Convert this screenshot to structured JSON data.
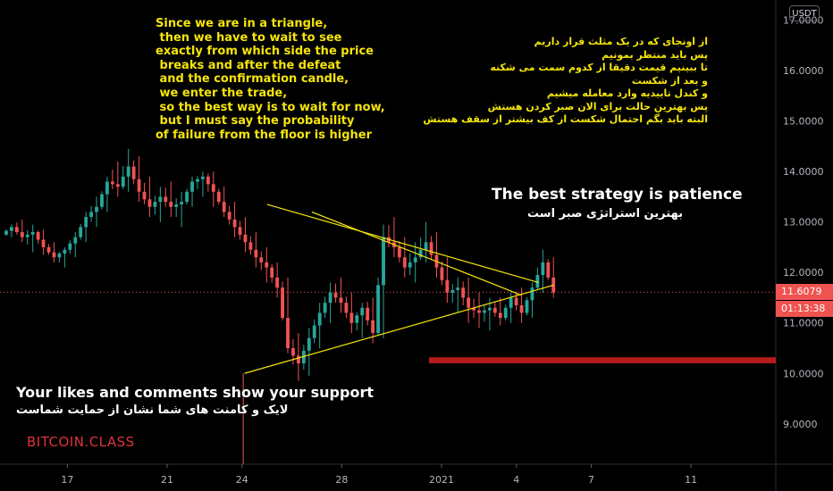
{
  "currency": "USDT",
  "brand": "BITCOIN.CLASS",
  "annotations": {
    "english_block": "Since we are in a triangle,\n then we have to wait to see\nexactly from which side the price\n breaks and after the defeat\n and the confirmation candle,\n we enter the trade,\n so the best way is to wait for now,\n but I must say the probability\nof failure from the floor is higher",
    "persian_block": "از اونجای که در یک مثلث قرار داریم\nپس باید منتظر بمونیم\nتا ببینیم قیمت دقیقا از کدوم سمت می شکنه\nو بعد از شکست\nو کندل تاییدیه وارد معامله میشیم\nپس بهترین حالت برای الان صبر کردن هستش\nالبته باید بگم احتمال شکست از کف بیشتر از سقف هستش",
    "strategy_en": "The best strategy is patience",
    "strategy_fa": "بهترین استراتژی صبر است",
    "support_en": "Your likes and comments show your support",
    "support_fa": "لایک و کامنت های شما نشان از حمایت شماست"
  },
  "price_labels": {
    "last_price": "11.6079",
    "countdown": "01:13:38"
  },
  "colors": {
    "background": "#000000",
    "up": "#26a69a",
    "down": "#ef5350",
    "pattern": "#f5e50a",
    "zone": "#b71c1c",
    "price_line": "#ef5350",
    "last_price_bg": "#ef5350",
    "countdown_bg": "#ef5350"
  },
  "chart_data": {
    "type": "candlestick",
    "symbol_quote": "USDT",
    "ylim": [
      8.2,
      17.4
    ],
    "y_ticks": [
      "9.0000",
      "10.0000",
      "11.0000",
      "12.0000",
      "13.0000",
      "14.0000",
      "15.0000",
      "16.0000",
      "17.0000"
    ],
    "y_tick_values": [
      9,
      10,
      11,
      12,
      13,
      14,
      15,
      16,
      17
    ],
    "x_ticks": [
      "17",
      "21",
      "24",
      "28",
      "2021",
      "4",
      "7",
      "11"
    ],
    "x_tick_days": [
      17,
      21,
      24,
      28,
      32,
      35,
      38,
      42
    ],
    "x_unit": "day of December 2020 (32 = Jan 1, 2021)",
    "xlim": [
      14.3,
      45.4
    ],
    "last_price": 11.6079,
    "resistance_zone": {
      "x_start": 31.5,
      "low": 10.2,
      "high": 10.32
    },
    "triangle": {
      "upper_line_1": [
        [
          25.0,
          13.35
        ],
        [
          35.9,
          11.8
        ]
      ],
      "upper_line_2": [
        [
          26.8,
          13.2
        ],
        [
          35.2,
          11.55
        ]
      ],
      "lower_line": [
        [
          24.1,
          10.0
        ],
        [
          36.5,
          11.75
        ]
      ]
    },
    "candles": [
      [
        12.75,
        12.95,
        12.7,
        12.9
      ],
      [
        12.9,
        13.05,
        12.6,
        12.7
      ],
      [
        12.7,
        12.95,
        12.4,
        12.8
      ],
      [
        12.8,
        12.85,
        12.35,
        12.5
      ],
      [
        12.5,
        12.6,
        12.2,
        12.3
      ],
      [
        12.3,
        12.5,
        12.1,
        12.45
      ],
      [
        12.45,
        12.8,
        12.3,
        12.7
      ],
      [
        12.7,
        13.2,
        12.6,
        13.1
      ],
      [
        13.1,
        13.5,
        12.9,
        13.3
      ],
      [
        13.3,
        13.9,
        13.2,
        13.8
      ],
      [
        13.8,
        14.2,
        13.5,
        13.7
      ],
      [
        13.7,
        14.45,
        13.6,
        14.1
      ],
      [
        14.1,
        14.3,
        13.4,
        13.6
      ],
      [
        13.6,
        13.9,
        13.1,
        13.3
      ],
      [
        13.3,
        13.7,
        13.0,
        13.5
      ],
      [
        13.5,
        13.8,
        13.1,
        13.3
      ],
      [
        13.3,
        13.6,
        12.9,
        13.4
      ],
      [
        13.4,
        13.9,
        13.3,
        13.8
      ],
      [
        13.8,
        14.0,
        13.5,
        13.9
      ],
      [
        13.9,
        14.0,
        13.3,
        13.6
      ],
      [
        13.6,
        13.7,
        13.1,
        13.2
      ],
      [
        13.2,
        13.4,
        12.7,
        12.9
      ],
      [
        12.9,
        13.1,
        12.4,
        12.6
      ],
      [
        12.6,
        12.8,
        12.1,
        12.3
      ],
      [
        12.3,
        12.5,
        11.8,
        12.1
      ],
      [
        12.1,
        12.2,
        11.5,
        11.7
      ],
      [
        11.7,
        11.9,
        10.4,
        10.5
      ],
      [
        10.5,
        10.8,
        9.85,
        10.2
      ],
      [
        10.2,
        10.9,
        9.95,
        10.7
      ],
      [
        10.7,
        11.4,
        10.5,
        11.2
      ],
      [
        11.2,
        11.8,
        11.0,
        11.6
      ],
      [
        11.6,
        11.9,
        11.2,
        11.4
      ],
      [
        11.4,
        11.6,
        10.8,
        11.0
      ],
      [
        11.0,
        11.4,
        10.7,
        11.3
      ],
      [
        11.3,
        11.5,
        10.6,
        10.8
      ],
      [
        10.8,
        12.95,
        10.7,
        12.7
      ],
      [
        12.7,
        13.1,
        12.3,
        12.5
      ],
      [
        12.5,
        12.7,
        11.9,
        12.1
      ],
      [
        12.1,
        12.6,
        11.8,
        12.3
      ],
      [
        12.3,
        13.0,
        12.2,
        12.6
      ],
      [
        12.6,
        12.8,
        11.9,
        12.1
      ],
      [
        12.1,
        12.3,
        11.4,
        11.6
      ],
      [
        11.6,
        11.9,
        11.2,
        11.7
      ],
      [
        11.7,
        11.9,
        11.0,
        11.3
      ],
      [
        11.3,
        11.6,
        10.9,
        11.2
      ],
      [
        11.2,
        11.5,
        10.85,
        11.3
      ],
      [
        11.3,
        11.5,
        10.95,
        11.1
      ],
      [
        11.1,
        11.6,
        11.0,
        11.5
      ],
      [
        11.5,
        11.7,
        11.0,
        11.2
      ],
      [
        11.2,
        11.8,
        11.1,
        11.7
      ],
      [
        11.7,
        12.45,
        11.6,
        12.2
      ],
      [
        12.2,
        12.3,
        11.5,
        11.6
      ]
    ]
  }
}
